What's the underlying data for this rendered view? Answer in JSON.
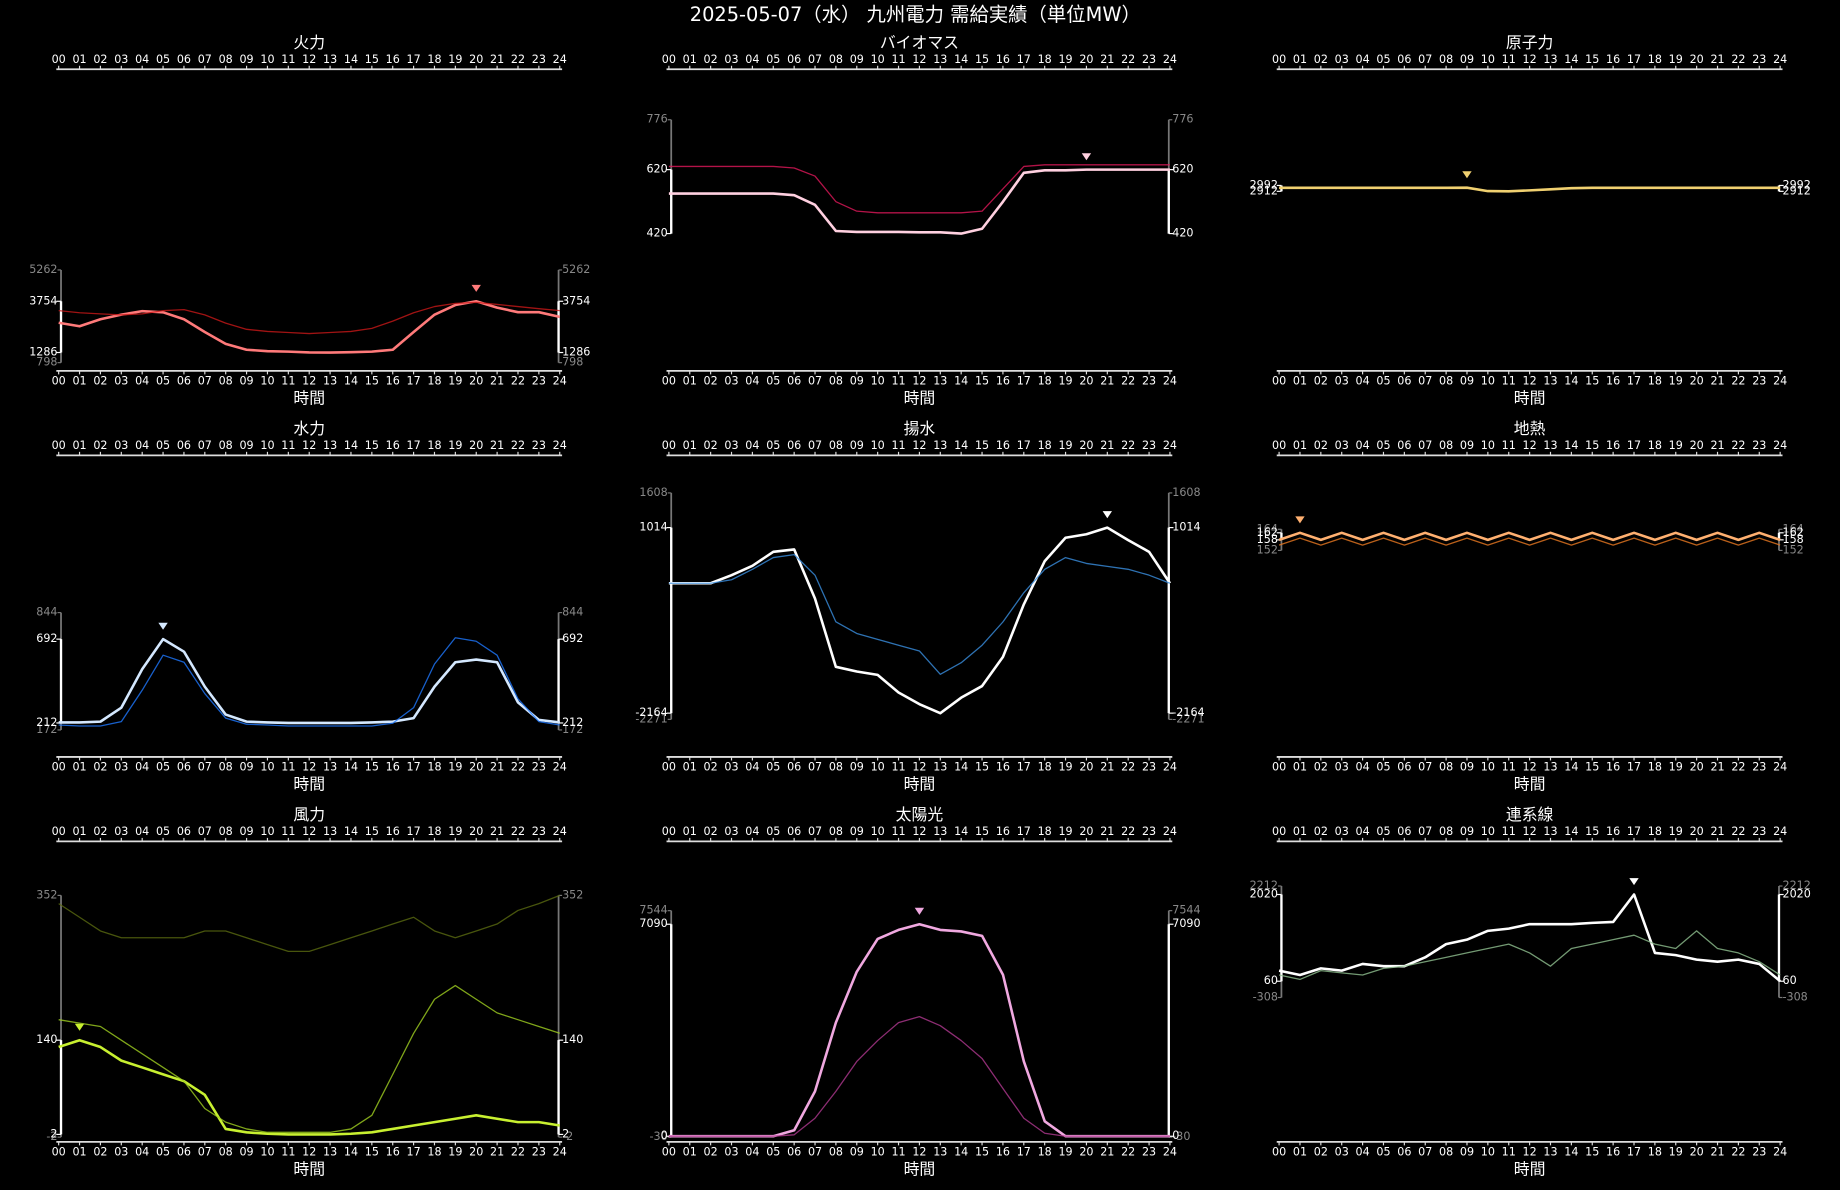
{
  "title": "2025-05-07（水） 九州電力 需給実績（単位MW）",
  "chart_data": [
    {
      "type": "line",
      "title": "火力",
      "x_label": "時間",
      "categories": [
        "00",
        "01",
        "02",
        "03",
        "04",
        "05",
        "06",
        "07",
        "08",
        "09",
        "10",
        "11",
        "12",
        "13",
        "14",
        "15",
        "16",
        "17",
        "18",
        "19",
        "20",
        "21",
        "22",
        "23",
        "24"
      ],
      "ylim": [
        798,
        5262
      ],
      "yticks": [
        3754,
        1286
      ],
      "series": [
        {
          "color": "#ff7a7a",
          "values": [
            2720,
            2550,
            2890,
            3110,
            3280,
            3220,
            2890,
            2270,
            1700,
            1420,
            1350,
            1330,
            1290,
            1286,
            1300,
            1330,
            1420,
            2270,
            3110,
            3570,
            3754,
            3450,
            3230,
            3230,
            3000
          ]
        },
        {
          "color": "#c81818",
          "values": [
            3300,
            3200,
            3150,
            3100,
            3150,
            3300,
            3350,
            3100,
            2700,
            2400,
            2300,
            2250,
            2200,
            2250,
            2300,
            2450,
            2800,
            3200,
            3500,
            3650,
            3700,
            3600,
            3500,
            3400,
            3300
          ]
        }
      ]
    },
    {
      "type": "line",
      "title": "バイオマス",
      "x_label": "時間",
      "categories": [
        "00",
        "01",
        "02",
        "03",
        "04",
        "05",
        "06",
        "07",
        "08",
        "09",
        "10",
        "11",
        "12",
        "13",
        "14",
        "15",
        "16",
        "17",
        "18",
        "19",
        "20",
        "21",
        "22",
        "23",
        "24"
      ],
      "ylim": [
        420,
        776
      ],
      "yticks": [
        620,
        420
      ],
      "series": [
        {
          "color": "#ffd0e0",
          "values": [
            545,
            545,
            545,
            545,
            545,
            545,
            540,
            510,
            428,
            425,
            425,
            425,
            424,
            424,
            420,
            435,
            520,
            610,
            618,
            618,
            620,
            620,
            620,
            620,
            620
          ]
        },
        {
          "color": "#e0185a",
          "values": [
            630,
            630,
            630,
            630,
            630,
            630,
            625,
            600,
            520,
            490,
            485,
            485,
            485,
            485,
            485,
            490,
            560,
            630,
            635,
            635,
            635,
            635,
            635,
            635,
            635
          ]
        }
      ]
    },
    {
      "type": "line",
      "title": "原子力",
      "x_label": "時間",
      "categories": [
        "00",
        "01",
        "02",
        "03",
        "04",
        "05",
        "06",
        "07",
        "08",
        "09",
        "10",
        "11",
        "12",
        "13",
        "14",
        "15",
        "16",
        "17",
        "18",
        "19",
        "20",
        "21",
        "22",
        "23",
        "24"
      ],
      "ylim": [
        2912,
        2992
      ],
      "yticks": [
        2992,
        2912
      ],
      "series": [
        {
          "color": "#f0d070",
          "values": [
            2960,
            2960,
            2960,
            2960,
            2960,
            2960,
            2960,
            2960,
            2960,
            2962,
            2915,
            2912,
            2925,
            2940,
            2955,
            2960,
            2960,
            2960,
            2960,
            2960,
            2960,
            2960,
            2960,
            2960,
            2960
          ]
        }
      ]
    },
    {
      "type": "line",
      "title": "水力",
      "x_label": "時間",
      "categories": [
        "00",
        "01",
        "02",
        "03",
        "04",
        "05",
        "06",
        "07",
        "08",
        "09",
        "10",
        "11",
        "12",
        "13",
        "14",
        "15",
        "16",
        "17",
        "18",
        "19",
        "20",
        "21",
        "22",
        "23",
        "24"
      ],
      "ylim": [
        172,
        844
      ],
      "yticks": [
        692,
        212
      ],
      "series": [
        {
          "color": "#d4e8ff",
          "values": [
            215,
            215,
            220,
            300,
            520,
            692,
            620,
            420,
            260,
            220,
            215,
            212,
            212,
            212,
            212,
            215,
            220,
            240,
            420,
            560,
            575,
            560,
            330,
            230,
            215
          ]
        },
        {
          "color": "#1e78ff",
          "values": [
            200,
            195,
            195,
            220,
            400,
            600,
            560,
            380,
            240,
            205,
            200,
            195,
            195,
            195,
            195,
            195,
            210,
            300,
            550,
            700,
            680,
            600,
            350,
            220,
            200
          ]
        }
      ]
    },
    {
      "type": "line",
      "title": "揚水",
      "x_label": "時間",
      "categories": [
        "00",
        "01",
        "02",
        "03",
        "04",
        "05",
        "06",
        "07",
        "08",
        "09",
        "10",
        "11",
        "12",
        "13",
        "14",
        "15",
        "16",
        "17",
        "18",
        "19",
        "20",
        "21",
        "22",
        "23",
        "24"
      ],
      "ylim": [
        -2271,
        1608
      ],
      "yticks": [
        1014,
        -2164
      ],
      "series": [
        {
          "color": "#ffffff",
          "values": [
            60,
            60,
            60,
            200,
            360,
            600,
            640,
            -200,
            -1370,
            -1450,
            -1510,
            -1810,
            -2010,
            -2164,
            -1900,
            -1700,
            -1200,
            -300,
            440,
            840,
            900,
            1014,
            800,
            600,
            60
          ]
        },
        {
          "color": "#3a8ee0",
          "values": [
            60,
            60,
            60,
            120,
            300,
            500,
            550,
            200,
            -600,
            -800,
            -900,
            -1000,
            -1100,
            -1500,
            -1300,
            -1000,
            -600,
            -100,
            300,
            500,
            400,
            350,
            300,
            200,
            60
          ]
        }
      ]
    },
    {
      "type": "line",
      "title": "地熱",
      "x_label": "時間",
      "categories": [
        "00",
        "01",
        "02",
        "03",
        "04",
        "05",
        "06",
        "07",
        "08",
        "09",
        "10",
        "11",
        "12",
        "13",
        "14",
        "15",
        "16",
        "17",
        "18",
        "19",
        "20",
        "21",
        "22",
        "23",
        "24"
      ],
      "ylim": [
        152,
        164
      ],
      "yticks": [
        162,
        158
      ],
      "series": [
        {
          "color": "#ffb070",
          "values": [
            158,
            162,
            158,
            162,
            158,
            162,
            158,
            162,
            158,
            162,
            158,
            162,
            158,
            162,
            158,
            162,
            158,
            162,
            158,
            162,
            158,
            162,
            158,
            162,
            158
          ]
        },
        {
          "color": "#e87820",
          "values": [
            155,
            159,
            155,
            159,
            155,
            159,
            155,
            159,
            155,
            159,
            155,
            159,
            155,
            159,
            155,
            159,
            155,
            159,
            155,
            159,
            155,
            159,
            155,
            159,
            155
          ]
        }
      ]
    },
    {
      "type": "line",
      "title": "風力",
      "x_label": "時間",
      "categories": [
        "00",
        "01",
        "02",
        "03",
        "04",
        "05",
        "06",
        "07",
        "08",
        "09",
        "10",
        "11",
        "12",
        "13",
        "14",
        "15",
        "16",
        "17",
        "18",
        "19",
        "20",
        "21",
        "22",
        "23",
        "24"
      ],
      "ylim": [
        -2,
        352
      ],
      "yticks": [
        140,
        2
      ],
      "series": [
        {
          "color": "#c8f030",
          "values": [
            130,
            140,
            130,
            110,
            100,
            90,
            80,
            60,
            10,
            5,
            3,
            2,
            2,
            2,
            3,
            5,
            10,
            15,
            20,
            25,
            30,
            25,
            20,
            20,
            15
          ]
        },
        {
          "color": "#5a6a10",
          "values": [
            340,
            320,
            300,
            290,
            290,
            290,
            290,
            300,
            300,
            290,
            280,
            270,
            270,
            280,
            290,
            300,
            310,
            320,
            300,
            290,
            300,
            310,
            330,
            340,
            352
          ]
        },
        {
          "color": "#a0d020",
          "values": [
            170,
            165,
            160,
            140,
            120,
            100,
            80,
            40,
            20,
            10,
            5,
            5,
            5,
            5,
            10,
            30,
            90,
            150,
            200,
            220,
            200,
            180,
            170,
            160,
            150
          ]
        }
      ]
    },
    {
      "type": "line",
      "title": "太陽光",
      "x_label": "時間",
      "categories": [
        "00",
        "01",
        "02",
        "03",
        "04",
        "05",
        "06",
        "07",
        "08",
        "09",
        "10",
        "11",
        "12",
        "13",
        "14",
        "15",
        "16",
        "17",
        "18",
        "19",
        "20",
        "21",
        "22",
        "23",
        "24"
      ],
      "ylim": [
        -30,
        7544
      ],
      "yticks": [
        7090,
        0
      ],
      "series": [
        {
          "color": "#f0a8e0",
          "values": [
            0,
            0,
            0,
            0,
            0,
            0,
            200,
            1500,
            3800,
            5500,
            6600,
            6900,
            7090,
            6900,
            6850,
            6700,
            5400,
            2500,
            500,
            0,
            0,
            0,
            0,
            0,
            0
          ]
        },
        {
          "color": "#b03890",
          "values": [
            0,
            0,
            0,
            0,
            0,
            0,
            50,
            600,
            1500,
            2500,
            3200,
            3800,
            4000,
            3700,
            3200,
            2600,
            1600,
            600,
            100,
            0,
            0,
            0,
            0,
            0,
            0
          ]
        }
      ]
    },
    {
      "type": "line",
      "title": "連系線",
      "x_label": "時間",
      "categories": [
        "00",
        "01",
        "02",
        "03",
        "04",
        "05",
        "06",
        "07",
        "08",
        "09",
        "10",
        "11",
        "12",
        "13",
        "14",
        "15",
        "16",
        "17",
        "18",
        "19",
        "20",
        "21",
        "22",
        "23",
        "24"
      ],
      "ylim": [
        -308,
        2212
      ],
      "yticks": [
        2020,
        60
      ],
      "series": [
        {
          "color": "#ffffff",
          "values": [
            300,
            200,
            350,
            300,
            450,
            400,
            400,
            600,
            900,
            1000,
            1200,
            1250,
            1350,
            1350,
            1350,
            1380,
            1400,
            2020,
            700,
            650,
            550,
            500,
            550,
            450,
            60
          ]
        },
        {
          "color": "#90c090",
          "values": [
            200,
            100,
            300,
            250,
            200,
            350,
            400,
            500,
            600,
            700,
            800,
            900,
            700,
            400,
            800,
            900,
            1000,
            1100,
            900,
            800,
            1200,
            800,
            700,
            500,
            200
          ]
        }
      ]
    }
  ]
}
